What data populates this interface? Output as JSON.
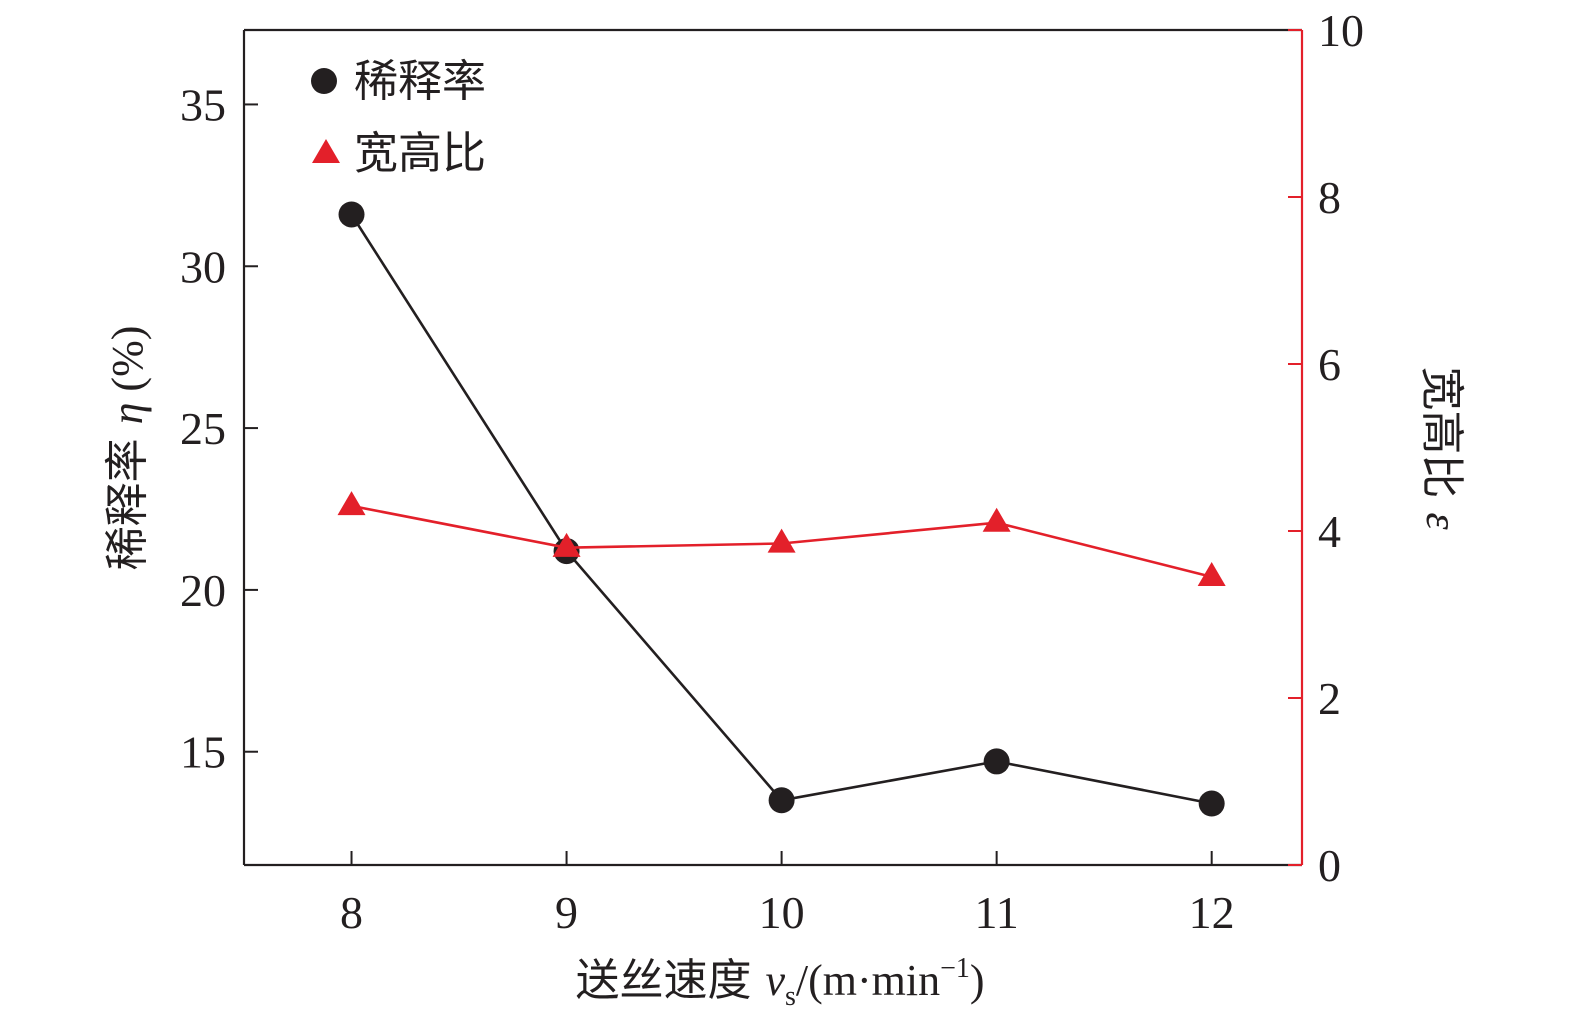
{
  "chart_data": {
    "type": "line",
    "x": [
      8,
      9,
      10,
      11,
      12
    ],
    "x_tick_labels": [
      "8",
      "9",
      "10",
      "11",
      "12"
    ],
    "xlim": [
      7.5,
      12.42
    ],
    "xlabel_parts": {
      "prefix": "送丝速度 ",
      "var": "v",
      "sub": "s",
      "mid": "/(m·min",
      "sup": "−1",
      "suffix": ")"
    },
    "y_left": {
      "label_parts": {
        "prefix": "稀释率 ",
        "var": "η",
        "suffix": " (%)"
      },
      "ylim": [
        11.5,
        37.3
      ],
      "ticks": [
        15,
        20,
        25,
        30,
        35
      ],
      "tick_labels": [
        "15",
        "20",
        "25",
        "30",
        "35"
      ],
      "color": "#231f20"
    },
    "y_right": {
      "label_parts": {
        "prefix": "宽高比 ",
        "var": "ε"
      },
      "ylim": [
        0,
        10
      ],
      "ticks": [
        0,
        2,
        4,
        6,
        8,
        10
      ],
      "tick_labels": [
        "0",
        "2",
        "4",
        "6",
        "8",
        "10"
      ],
      "color": "#e3202a"
    },
    "series": [
      {
        "name": "稀释率",
        "axis": "left",
        "marker": "circle",
        "color": "#231f20",
        "values": [
          31.6,
          21.2,
          13.5,
          14.7,
          13.4
        ]
      },
      {
        "name": "宽高比",
        "axis": "right",
        "marker": "triangle",
        "color": "#e3202a",
        "values": [
          4.3,
          3.8,
          3.85,
          4.1,
          3.45
        ]
      }
    ],
    "legend": "top-left",
    "grid": false
  }
}
